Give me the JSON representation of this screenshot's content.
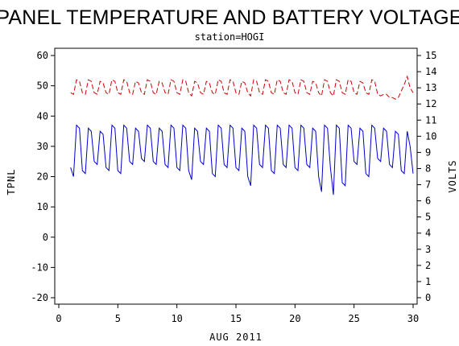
{
  "chart_data": {
    "type": "line",
    "title": "PANEL TEMPERATURE AND BATTERY VOLTAGE",
    "subtitle": "station=HOGI",
    "xlabel": "AUG 2011",
    "ylabel_left": "TPNL",
    "ylabel_right": "VOLTS",
    "xlim": [
      0,
      30
    ],
    "ylim_left": [
      -20,
      60
    ],
    "ylim_right": [
      0,
      15
    ],
    "x_ticks": [
      0,
      5,
      10,
      15,
      20,
      25,
      30
    ],
    "y_ticks_left": [
      -20,
      -10,
      0,
      10,
      20,
      30,
      40,
      50,
      60
    ],
    "y_ticks_right": [
      0,
      1,
      2,
      3,
      4,
      5,
      6,
      7,
      8,
      9,
      10,
      11,
      12,
      13,
      14,
      15
    ],
    "grid": false,
    "series": [
      {
        "name": "TPNL",
        "axis": "left",
        "color": "#0000cc",
        "style": "solid",
        "x": [
          1.0,
          1.25,
          1.5,
          1.75,
          2.0,
          2.25,
          2.5,
          2.75,
          3.0,
          3.25,
          3.5,
          3.75,
          4.0,
          4.25,
          4.5,
          4.75,
          5.0,
          5.25,
          5.5,
          5.75,
          6.0,
          6.25,
          6.5,
          6.75,
          7.0,
          7.25,
          7.5,
          7.75,
          8.0,
          8.25,
          8.5,
          8.75,
          9.0,
          9.25,
          9.5,
          9.75,
          10.0,
          10.25,
          10.5,
          10.75,
          11.0,
          11.25,
          11.5,
          11.75,
          12.0,
          12.25,
          12.5,
          12.75,
          13.0,
          13.25,
          13.5,
          13.75,
          14.0,
          14.25,
          14.5,
          14.75,
          15.0,
          15.25,
          15.5,
          15.75,
          16.0,
          16.25,
          16.5,
          16.75,
          17.0,
          17.25,
          17.5,
          17.75,
          18.0,
          18.25,
          18.5,
          18.75,
          19.0,
          19.25,
          19.5,
          19.75,
          20.0,
          20.25,
          20.5,
          20.75,
          21.0,
          21.25,
          21.5,
          21.75,
          22.0,
          22.25,
          22.5,
          22.75,
          23.0,
          23.25,
          23.5,
          23.75,
          24.0,
          24.25,
          24.5,
          24.75,
          25.0,
          25.25,
          25.5,
          25.75,
          26.0,
          26.25,
          26.5,
          26.75,
          27.0,
          27.25,
          27.5,
          27.75,
          28.0,
          28.25,
          28.5,
          28.75,
          29.0,
          29.25,
          29.5,
          29.75,
          30.0
        ],
        "values": [
          23,
          20,
          37,
          36,
          22,
          21,
          36,
          35,
          25,
          24,
          35,
          34,
          23,
          22,
          37,
          36,
          22,
          21,
          37,
          36,
          25,
          24,
          36,
          35,
          26,
          25,
          37,
          36,
          25,
          24,
          36,
          35,
          24,
          23,
          37,
          36,
          23,
          22,
          37,
          36,
          22,
          19,
          36,
          35,
          25,
          24,
          36,
          35,
          21,
          20,
          37,
          36,
          24,
          23,
          37,
          36,
          23,
          22,
          36,
          35,
          20,
          17,
          37,
          36,
          24,
          23,
          37,
          36,
          22,
          21,
          37,
          36,
          24,
          23,
          37,
          36,
          23,
          22,
          37,
          36,
          24,
          23,
          36,
          35,
          20,
          15,
          37,
          36,
          23,
          14,
          37,
          36,
          18,
          17,
          37,
          36,
          25,
          24,
          36,
          35,
          21,
          20,
          37,
          36,
          26,
          25,
          36,
          35,
          24,
          23,
          35,
          34,
          22,
          21,
          35,
          30,
          21
        ]
      },
      {
        "name": "VOLTS",
        "axis": "right",
        "color": "#cc0000",
        "style": "dashed",
        "x": [
          1.0,
          1.25,
          1.5,
          1.75,
          2.0,
          2.25,
          2.5,
          2.75,
          3.0,
          3.25,
          3.5,
          3.75,
          4.0,
          4.25,
          4.5,
          4.75,
          5.0,
          5.25,
          5.5,
          5.75,
          6.0,
          6.25,
          6.5,
          6.75,
          7.0,
          7.25,
          7.5,
          7.75,
          8.0,
          8.25,
          8.5,
          8.75,
          9.0,
          9.25,
          9.5,
          9.75,
          10.0,
          10.25,
          10.5,
          10.75,
          11.0,
          11.25,
          11.5,
          11.75,
          12.0,
          12.25,
          12.5,
          12.75,
          13.0,
          13.25,
          13.5,
          13.75,
          14.0,
          14.25,
          14.5,
          14.75,
          15.0,
          15.25,
          15.5,
          15.75,
          16.0,
          16.25,
          16.5,
          16.75,
          17.0,
          17.25,
          17.5,
          17.75,
          18.0,
          18.25,
          18.5,
          18.75,
          19.0,
          19.25,
          19.5,
          19.75,
          20.0,
          20.25,
          20.5,
          20.75,
          21.0,
          21.25,
          21.5,
          21.75,
          22.0,
          22.25,
          22.5,
          22.75,
          23.0,
          23.25,
          23.5,
          23.75,
          24.0,
          24.25,
          24.5,
          24.75,
          25.0,
          25.25,
          25.5,
          25.75,
          26.0,
          26.25,
          26.5,
          26.75,
          27.0,
          27.25,
          27.5,
          27.75,
          28.0,
          28.25,
          28.5,
          28.75,
          29.0,
          29.25,
          29.5,
          29.75,
          30.0
        ],
        "values": [
          12.7,
          12.6,
          13.5,
          13.4,
          12.7,
          12.6,
          13.5,
          13.4,
          12.7,
          12.6,
          13.4,
          13.3,
          12.7,
          12.6,
          13.5,
          13.4,
          12.7,
          12.6,
          13.5,
          13.4,
          12.7,
          12.6,
          13.4,
          13.3,
          12.7,
          12.6,
          13.5,
          13.4,
          12.7,
          12.6,
          13.4,
          13.3,
          12.7,
          12.6,
          13.5,
          13.4,
          12.7,
          12.6,
          13.5,
          13.4,
          12.7,
          12.5,
          13.4,
          13.3,
          12.7,
          12.6,
          13.4,
          13.3,
          12.7,
          12.6,
          13.5,
          13.4,
          12.7,
          12.6,
          13.5,
          13.4,
          12.7,
          12.6,
          13.4,
          13.3,
          12.7,
          12.5,
          13.5,
          13.4,
          12.7,
          12.6,
          13.5,
          13.4,
          12.7,
          12.6,
          13.5,
          13.4,
          12.7,
          12.6,
          13.5,
          13.4,
          12.7,
          12.6,
          13.5,
          13.4,
          12.7,
          12.6,
          13.4,
          13.3,
          12.7,
          12.5,
          13.5,
          13.4,
          12.7,
          12.5,
          13.5,
          13.4,
          12.7,
          12.6,
          13.5,
          13.4,
          12.7,
          12.6,
          13.4,
          13.3,
          12.7,
          12.6,
          13.5,
          13.4,
          12.6,
          12.5,
          12.6,
          12.6,
          12.4,
          12.4,
          12.3,
          12.4,
          12.8,
          13.2,
          13.7,
          13.0,
          12.7
        ]
      }
    ]
  }
}
